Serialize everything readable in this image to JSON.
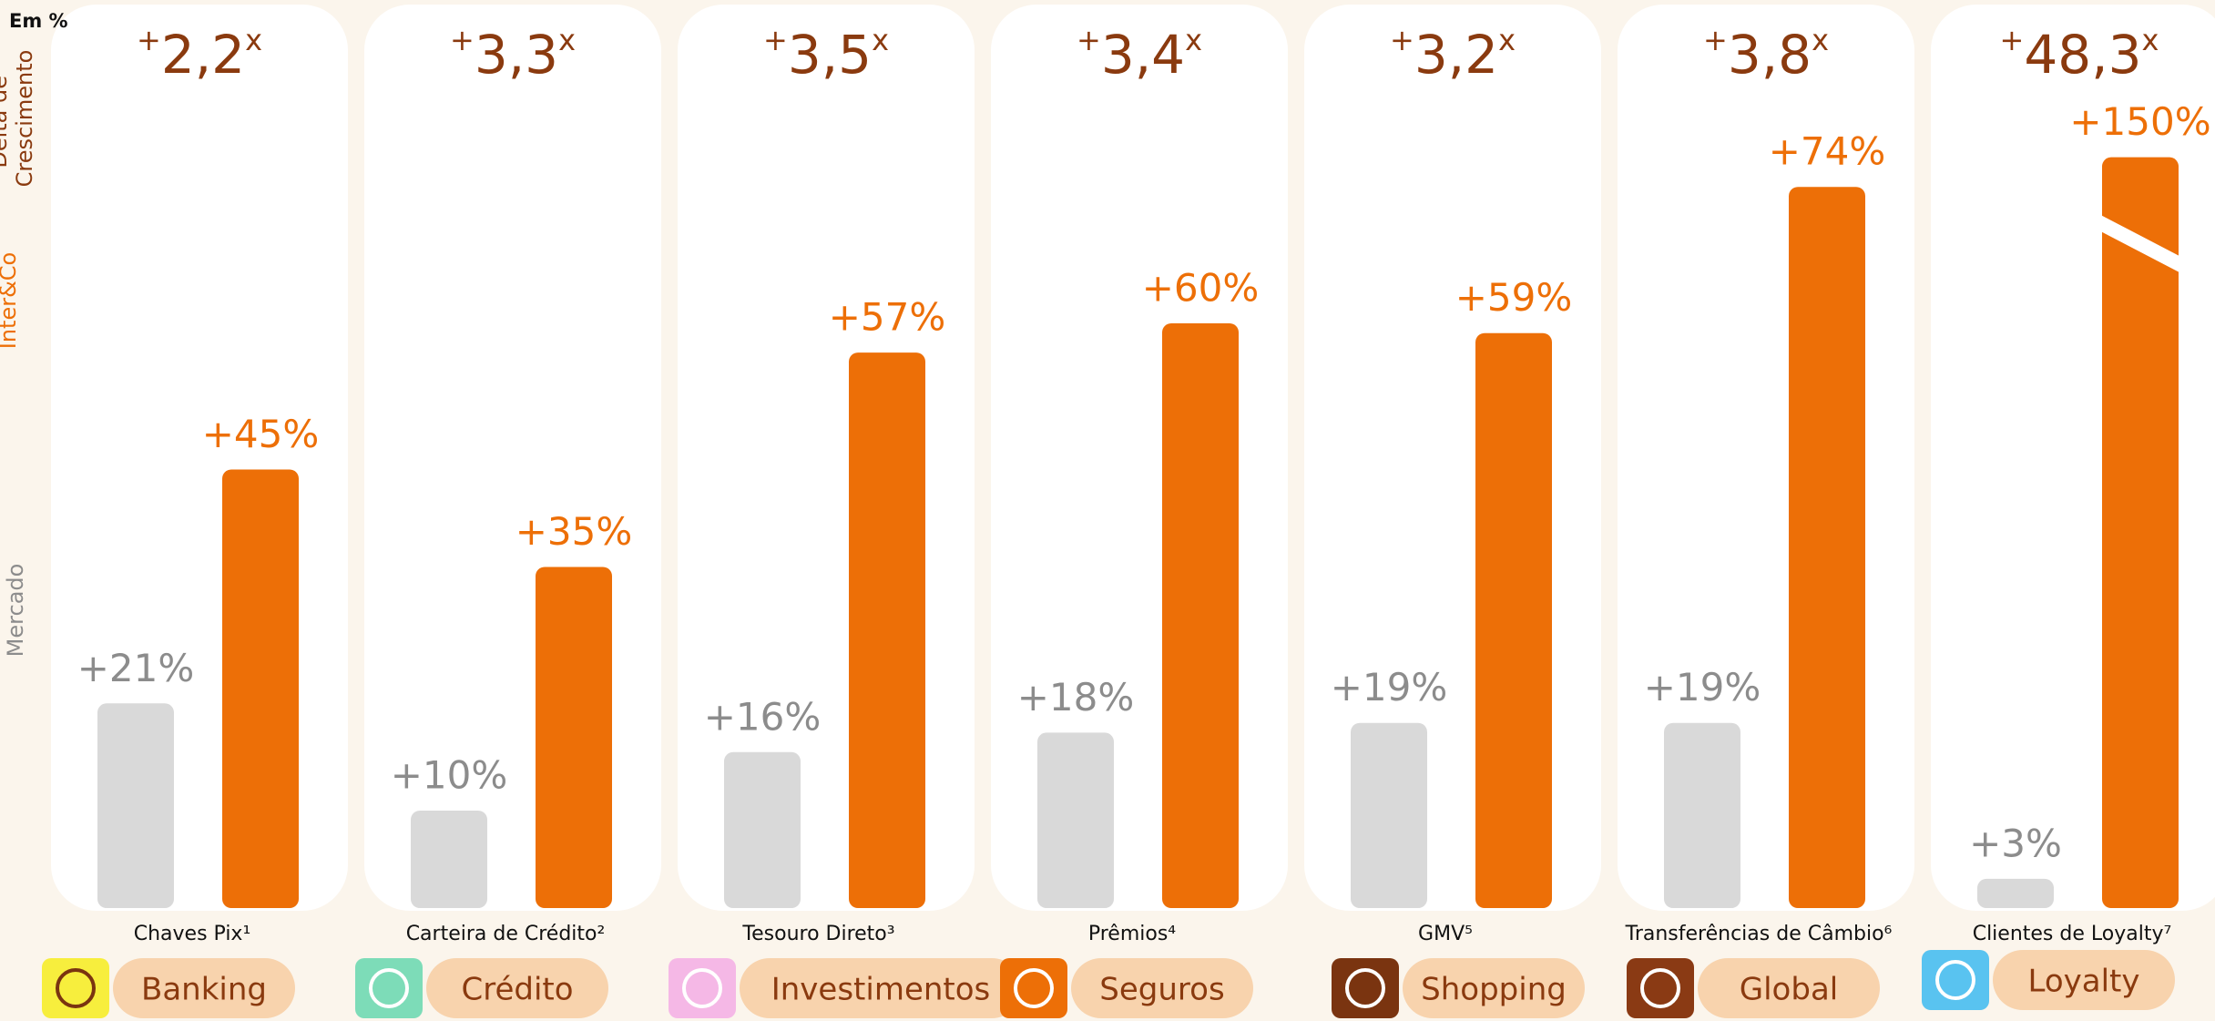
{
  "chart_data": {
    "type": "bar",
    "subtitle": "Em %",
    "delta_label": "Delta de Crescimento",
    "categories": [
      "Chaves Pix¹",
      "Carteira de Crédito²",
      "Tesouro Direto³",
      "Prêmios⁴",
      "GMV⁵",
      "Transferências de Câmbio⁶",
      "Clientes de Loyalty⁷"
    ],
    "groups": [
      "Banking",
      "Crédito",
      "Investimentos",
      "Seguros",
      "Shopping",
      "Global",
      "Loyalty"
    ],
    "group_colors": [
      "#f7ee3d",
      "#7ddcb8",
      "#f5b8e6",
      "#ed6f07",
      "#7a3410",
      "#8a3a14",
      "#59c3f0"
    ],
    "series": [
      {
        "name": "Mercado",
        "color": "#d9d9d9",
        "values": [
          21,
          10,
          16,
          18,
          19,
          19,
          3
        ],
        "value_labels": [
          "+21%",
          "+10%",
          "+16%",
          "+18%",
          "+19%",
          "+19%",
          "+3%"
        ]
      },
      {
        "name": "Inter&Co",
        "color": "#ed6f07",
        "values": [
          45,
          35,
          57,
          60,
          59,
          74,
          150
        ],
        "value_labels": [
          "+45%",
          "+35%",
          "+57%",
          "+60%",
          "+59%",
          "+74%",
          "+150%"
        ]
      }
    ],
    "multipliers": {
      "color": "#8a3a0f",
      "values": [
        2.2,
        3.3,
        3.5,
        3.4,
        3.2,
        3.8,
        48.3
      ],
      "value_labels": [
        "+2,2x",
        "+3,3x",
        "+3,5x",
        "+3,4x",
        "+3,2x",
        "+3,8x",
        "+48,3x"
      ]
    }
  }
}
